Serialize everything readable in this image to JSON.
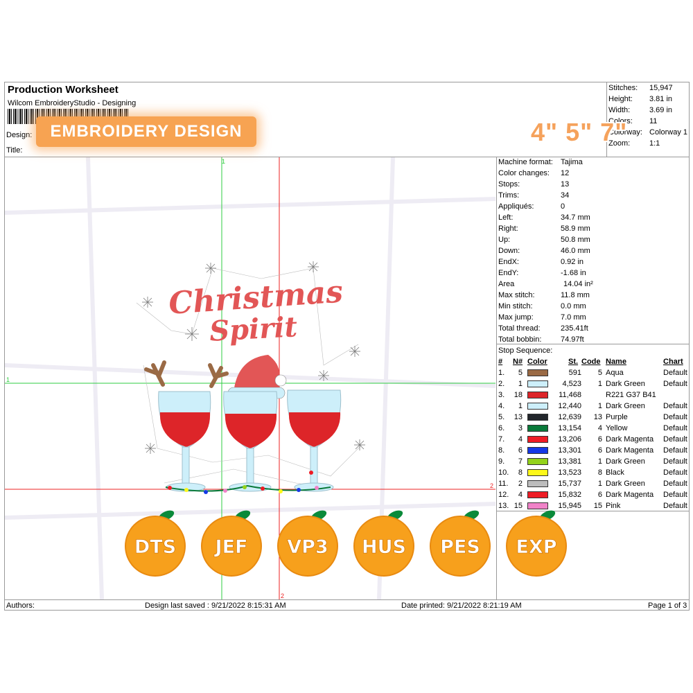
{
  "header": {
    "title": "Production Worksheet",
    "subtitle": "Wilcom EmbroideryStudio - Designing",
    "design_label": "Design:",
    "title_label": "Title:"
  },
  "badge": {
    "text": "EMBROIDERY DESIGN",
    "color": "#f7a352"
  },
  "size_overlay": "4\" 5\" 7\"",
  "summary": [
    {
      "label": "Stitches:",
      "value": "15,947"
    },
    {
      "label": "Height:",
      "value": "3.81 in"
    },
    {
      "label": "Width:",
      "value": "3.69 in"
    },
    {
      "label": "Colors:",
      "value": "11"
    },
    {
      "label": "Colorway:",
      "value": "Colorway 1"
    },
    {
      "label": "Zoom:",
      "value": "1:1"
    }
  ],
  "machine": [
    {
      "label": "Machine format:",
      "value": "Tajima"
    },
    {
      "label": "Color changes:",
      "value": "12"
    },
    {
      "label": "Stops:",
      "value": "13"
    },
    {
      "label": "Trims:",
      "value": "34"
    },
    {
      "label": "Appliqués:",
      "value": "0"
    },
    {
      "label": "Left:",
      "value": "34.7 mm"
    },
    {
      "label": "Right:",
      "value": "58.9 mm"
    },
    {
      "label": "Up:",
      "value": "50.8 mm"
    },
    {
      "label": "Down:",
      "value": "46.0 mm"
    },
    {
      "label": "EndX:",
      "value": "0.92 in"
    },
    {
      "label": "EndY:",
      "value": "-1.68 in"
    },
    {
      "label": "Area",
      "value": "14.04 in²"
    },
    {
      "label": "Max stitch:",
      "value": "11.8 mm"
    },
    {
      "label": "Min stitch:",
      "value": "0.0 mm"
    },
    {
      "label": "Max jump:",
      "value": "7.0 mm"
    },
    {
      "label": "Total thread:",
      "value": "235.41ft"
    },
    {
      "label": "Total bobbin:",
      "value": "74.97ft"
    }
  ],
  "stop_sequence": {
    "title": "Stop Sequence:",
    "headers": {
      "idx": "#",
      "n": "N#",
      "color": "Color",
      "st": "St.",
      "code": "Code",
      "name": "Name",
      "chart": "Chart"
    },
    "rows": [
      {
        "idx": "1.",
        "n": "5",
        "color": "#9a6a45",
        "st": "591",
        "code": "5",
        "name": "Aqua",
        "chart": "Default"
      },
      {
        "idx": "2.",
        "n": "1",
        "color": "#cdeffa",
        "st": "4,523",
        "code": "1",
        "name": "Dark Green",
        "chart": "Default"
      },
      {
        "idx": "3.",
        "n": "18",
        "color": "#dd2529",
        "st": "11,468",
        "code": "",
        "name": "R221 G37 B41",
        "chart": ""
      },
      {
        "idx": "4.",
        "n": "1",
        "color": "#cdeffa",
        "st": "12,440",
        "code": "1",
        "name": "Dark Green",
        "chart": "Default"
      },
      {
        "idx": "5.",
        "n": "13",
        "color": "#22262b",
        "st": "12,639",
        "code": "13",
        "name": "Purple",
        "chart": "Default"
      },
      {
        "idx": "6.",
        "n": "3",
        "color": "#0a7a3a",
        "st": "13,154",
        "code": "4",
        "name": "Yellow",
        "chart": "Default"
      },
      {
        "idx": "7.",
        "n": "4",
        "color": "#ee1c25",
        "st": "13,206",
        "code": "6",
        "name": "Dark Magenta",
        "chart": "Default"
      },
      {
        "idx": "8.",
        "n": "6",
        "color": "#1538e6",
        "st": "13,301",
        "code": "6",
        "name": "Dark Magenta",
        "chart": "Default"
      },
      {
        "idx": "9.",
        "n": "7",
        "color": "#93d21a",
        "st": "13,381",
        "code": "1",
        "name": "Dark Green",
        "chart": "Default"
      },
      {
        "idx": "10.",
        "n": "8",
        "color": "#fdf81a",
        "st": "13,523",
        "code": "8",
        "name": "Black",
        "chart": "Default"
      },
      {
        "idx": "11.",
        "n": "2",
        "color": "#bdbdbd",
        "st": "15,737",
        "code": "1",
        "name": "Dark Green",
        "chart": "Default"
      },
      {
        "idx": "12.",
        "n": "4",
        "color": "#ee1c25",
        "st": "15,832",
        "code": "6",
        "name": "Dark Magenta",
        "chart": "Default"
      },
      {
        "idx": "13.",
        "n": "15",
        "color": "#f083c8",
        "st": "15,945",
        "code": "15",
        "name": "Pink",
        "chart": "Default"
      }
    ]
  },
  "design": {
    "line1": "Christmas",
    "line2": "Spirit",
    "axis_mark_1": "1",
    "axis_mark_2": "2"
  },
  "formats": [
    "DTS",
    "JEF",
    "VP3",
    "HUS",
    "PES",
    "EXP"
  ],
  "footer": {
    "authors": "Authors:",
    "saved": "Design last saved : 9/21/2022 8:15:31 AM",
    "printed": "Date printed: 9/21/2022 8:21:19 AM",
    "page": "Page 1 of 3"
  }
}
